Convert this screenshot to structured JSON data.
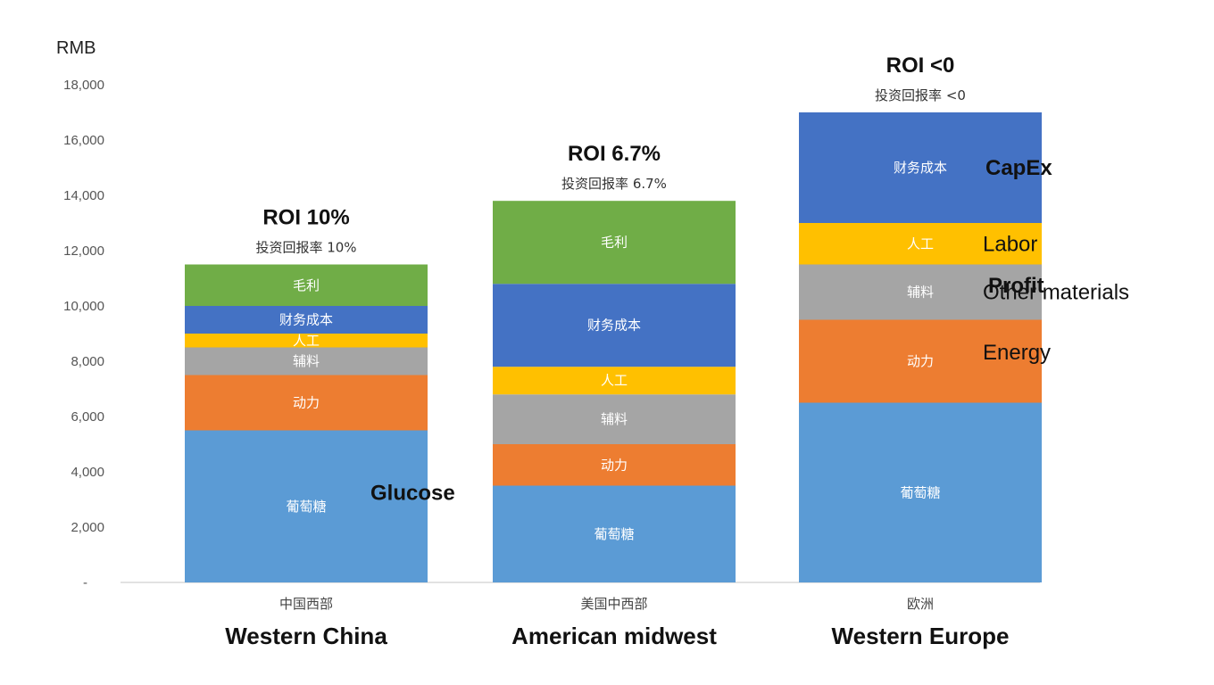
{
  "chart_data": {
    "type": "bar",
    "stacked": true,
    "ylabel": "RMB",
    "ylim": [
      0,
      18000
    ],
    "yticks": [
      "-",
      "2,000",
      "4,000",
      "6,000",
      "8,000",
      "10,000",
      "12,000",
      "14,000",
      "16,000",
      "18,000"
    ],
    "categories": [
      "中国西部",
      "美国中西部",
      "欧洲"
    ],
    "categories_en": [
      "Western China",
      "American midwest",
      "Western Europe"
    ],
    "roi_en": [
      "ROI 10%",
      "ROI 6.7%",
      "ROI <0"
    ],
    "roi_cn": [
      "投资回报率 10%",
      "投资回报率 6.7%",
      "投资回报率 <0"
    ],
    "series": [
      {
        "name": "葡萄糖",
        "color": "#5b9bd5",
        "values": [
          5500,
          3500,
          6500
        ]
      },
      {
        "name": "动力",
        "color": "#ed7d31",
        "values": [
          2000,
          1500,
          3000
        ]
      },
      {
        "name": "辅料",
        "color": "#a5a5a5",
        "values": [
          1000,
          1800,
          2000
        ]
      },
      {
        "name": "人工",
        "color": "#ffc000",
        "values": [
          500,
          1000,
          1500
        ]
      },
      {
        "name": "财务成本",
        "color": "#4472c4",
        "values": [
          1000,
          3000,
          4000
        ]
      },
      {
        "name": "毛利",
        "color": "#70ad47",
        "values": [
          1500,
          3000,
          0
        ]
      }
    ],
    "annotations": [
      {
        "text": "Profit",
        "series_index": 5,
        "bar_index": 0,
        "bold": true
      },
      {
        "text": "CapEx",
        "series_index": 4,
        "bar_index": 2,
        "bold": true
      },
      {
        "text": "Labor",
        "series_index": 3,
        "bar_index": 2,
        "bold": false
      },
      {
        "text": "Other materials",
        "series_index": 2,
        "bar_index": 2,
        "bold": false
      },
      {
        "text": "Energy",
        "series_index": 1,
        "bar_index": 2,
        "bold": false
      },
      {
        "text": "Glucose",
        "series_index": 0,
        "bar_index": 2,
        "bold": true
      }
    ],
    "grid": false
  }
}
